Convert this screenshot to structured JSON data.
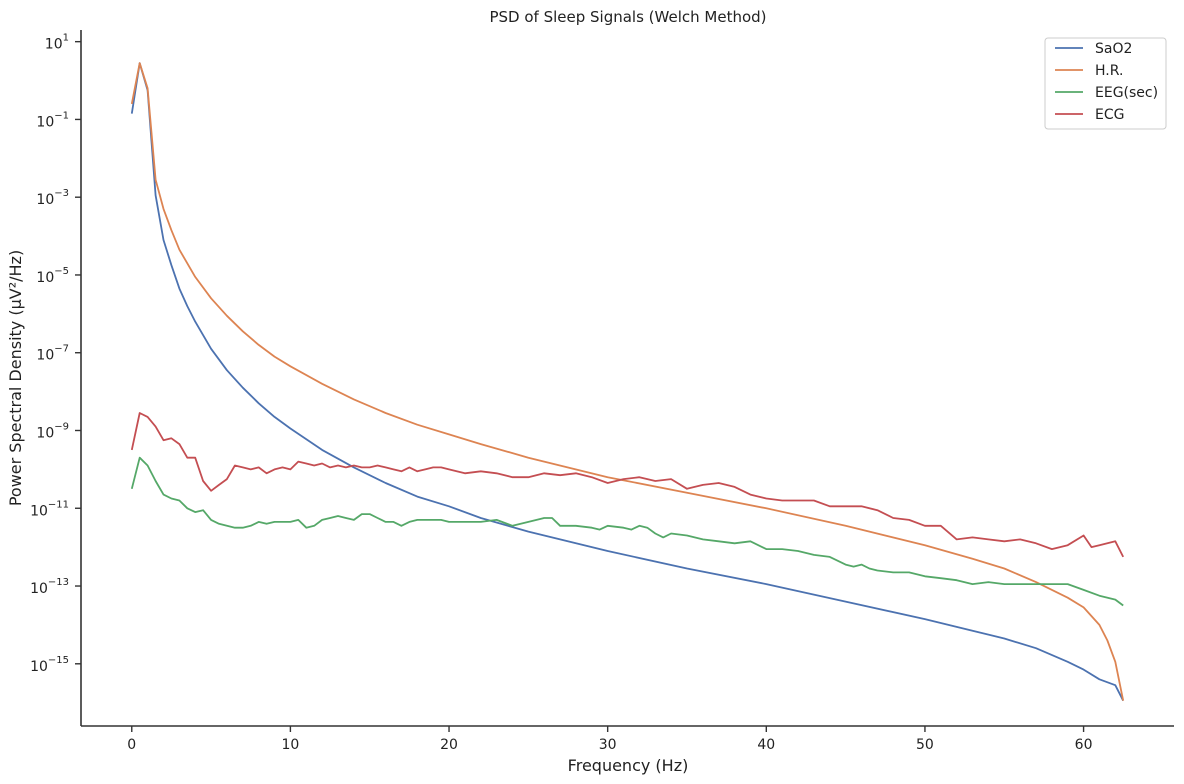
{
  "chart_data": {
    "type": "line",
    "title": "PSD of Sleep Signals (Welch Method)",
    "xlabel": "Frequency (Hz)",
    "ylabel": "Power Spectral Density (µV²/Hz)",
    "x_scale": "linear",
    "y_scale": "log",
    "xlim": [
      -3.2,
      65.7
    ],
    "ylim_log10": [
      -16.6,
      1.3
    ],
    "x_ticks": [
      0,
      10,
      20,
      30,
      40,
      50,
      60
    ],
    "x_tick_labels": [
      "0",
      "10",
      "20",
      "30",
      "40",
      "50",
      "60"
    ],
    "y_ticks_log10": [
      1,
      -1,
      -3,
      -5,
      -7,
      -9,
      -11,
      -13,
      -15
    ],
    "y_tick_labels": [
      {
        "base": "10",
        "exp": "1"
      },
      {
        "base": "10",
        "exp": "−1"
      },
      {
        "base": "10",
        "exp": "−3"
      },
      {
        "base": "10",
        "exp": "−5"
      },
      {
        "base": "10",
        "exp": "−7"
      },
      {
        "base": "10",
        "exp": "−9"
      },
      {
        "base": "10",
        "exp": "−11"
      },
      {
        "base": "10",
        "exp": "−13"
      },
      {
        "base": "10",
        "exp": "−15"
      }
    ],
    "grid": false,
    "legend_position": "top-right",
    "series": [
      {
        "name": "SaO2",
        "color": "#4c72b0",
        "points": [
          [
            0.0,
            -0.85
          ],
          [
            0.5,
            0.45
          ],
          [
            1.0,
            -0.25
          ],
          [
            1.5,
            -2.95
          ],
          [
            2.0,
            -4.1
          ],
          [
            2.5,
            -4.75
          ],
          [
            3.0,
            -5.35
          ],
          [
            3.5,
            -5.8
          ],
          [
            4.0,
            -6.2
          ],
          [
            5.0,
            -6.9
          ],
          [
            6.0,
            -7.45
          ],
          [
            7.0,
            -7.9
          ],
          [
            8.0,
            -8.3
          ],
          [
            9.0,
            -8.65
          ],
          [
            10.0,
            -8.95
          ],
          [
            12.0,
            -9.5
          ],
          [
            14.0,
            -9.95
          ],
          [
            16.0,
            -10.35
          ],
          [
            18.0,
            -10.7
          ],
          [
            20.0,
            -10.95
          ],
          [
            22.0,
            -11.25
          ],
          [
            25.0,
            -11.6
          ],
          [
            30.0,
            -12.1
          ],
          [
            35.0,
            -12.55
          ],
          [
            40.0,
            -12.95
          ],
          [
            45.0,
            -13.4
          ],
          [
            50.0,
            -13.85
          ],
          [
            53.0,
            -14.15
          ],
          [
            55.0,
            -14.35
          ],
          [
            57.0,
            -14.6
          ],
          [
            59.0,
            -14.95
          ],
          [
            60.0,
            -15.15
          ],
          [
            61.0,
            -15.4
          ],
          [
            62.0,
            -15.55
          ],
          [
            62.5,
            -15.95
          ]
        ]
      },
      {
        "name": "H.R.",
        "color": "#dd8452",
        "points": [
          [
            0.0,
            -0.6
          ],
          [
            0.5,
            0.45
          ],
          [
            1.0,
            -0.2
          ],
          [
            1.5,
            -2.55
          ],
          [
            2.0,
            -3.3
          ],
          [
            2.5,
            -3.85
          ],
          [
            3.0,
            -4.35
          ],
          [
            3.5,
            -4.7
          ],
          [
            4.0,
            -5.05
          ],
          [
            5.0,
            -5.6
          ],
          [
            6.0,
            -6.05
          ],
          [
            7.0,
            -6.45
          ],
          [
            8.0,
            -6.8
          ],
          [
            9.0,
            -7.1
          ],
          [
            10.0,
            -7.35
          ],
          [
            12.0,
            -7.8
          ],
          [
            14.0,
            -8.2
          ],
          [
            16.0,
            -8.55
          ],
          [
            18.0,
            -8.85
          ],
          [
            20.0,
            -9.1
          ],
          [
            22.0,
            -9.35
          ],
          [
            25.0,
            -9.7
          ],
          [
            30.0,
            -10.2
          ],
          [
            35.0,
            -10.6
          ],
          [
            40.0,
            -11.0
          ],
          [
            45.0,
            -11.45
          ],
          [
            50.0,
            -11.95
          ],
          [
            53.0,
            -12.3
          ],
          [
            55.0,
            -12.55
          ],
          [
            57.0,
            -12.9
          ],
          [
            59.0,
            -13.3
          ],
          [
            60.0,
            -13.55
          ],
          [
            61.0,
            -14.0
          ],
          [
            61.5,
            -14.4
          ],
          [
            62.0,
            -14.95
          ],
          [
            62.5,
            -15.95
          ]
        ]
      },
      {
        "name": "EEG(sec)",
        "color": "#55a868",
        "points": [
          [
            0.0,
            -10.5
          ],
          [
            0.5,
            -9.7
          ],
          [
            1.0,
            -9.9
          ],
          [
            1.5,
            -10.3
          ],
          [
            2.0,
            -10.65
          ],
          [
            2.5,
            -10.75
          ],
          [
            3.0,
            -10.8
          ],
          [
            3.5,
            -11.0
          ],
          [
            4.0,
            -11.1
          ],
          [
            4.5,
            -11.05
          ],
          [
            5.0,
            -11.3
          ],
          [
            5.5,
            -11.4
          ],
          [
            6.0,
            -11.45
          ],
          [
            6.5,
            -11.5
          ],
          [
            7.0,
            -11.5
          ],
          [
            7.5,
            -11.45
          ],
          [
            8.0,
            -11.35
          ],
          [
            8.5,
            -11.4
          ],
          [
            9.0,
            -11.35
          ],
          [
            9.5,
            -11.35
          ],
          [
            10.0,
            -11.35
          ],
          [
            10.5,
            -11.3
          ],
          [
            11.0,
            -11.5
          ],
          [
            11.5,
            -11.45
          ],
          [
            12.0,
            -11.3
          ],
          [
            12.5,
            -11.25
          ],
          [
            13.0,
            -11.2
          ],
          [
            13.5,
            -11.25
          ],
          [
            14.0,
            -11.3
          ],
          [
            14.5,
            -11.15
          ],
          [
            15.0,
            -11.15
          ],
          [
            15.5,
            -11.25
          ],
          [
            16.0,
            -11.35
          ],
          [
            16.5,
            -11.35
          ],
          [
            17.0,
            -11.45
          ],
          [
            17.5,
            -11.35
          ],
          [
            18.0,
            -11.3
          ],
          [
            18.5,
            -11.3
          ],
          [
            19.0,
            -11.3
          ],
          [
            19.5,
            -11.3
          ],
          [
            20.0,
            -11.35
          ],
          [
            20.5,
            -11.35
          ],
          [
            21.0,
            -11.35
          ],
          [
            22.0,
            -11.35
          ],
          [
            23.0,
            -11.3
          ],
          [
            24.0,
            -11.45
          ],
          [
            25.0,
            -11.35
          ],
          [
            26.0,
            -11.25
          ],
          [
            26.5,
            -11.25
          ],
          [
            27.0,
            -11.45
          ],
          [
            28.0,
            -11.45
          ],
          [
            29.0,
            -11.5
          ],
          [
            29.5,
            -11.55
          ],
          [
            30.0,
            -11.45
          ],
          [
            31.0,
            -11.5
          ],
          [
            31.5,
            -11.55
          ],
          [
            32.0,
            -11.45
          ],
          [
            32.5,
            -11.5
          ],
          [
            33.0,
            -11.65
          ],
          [
            33.5,
            -11.75
          ],
          [
            34.0,
            -11.65
          ],
          [
            35.0,
            -11.7
          ],
          [
            36.0,
            -11.8
          ],
          [
            37.0,
            -11.85
          ],
          [
            38.0,
            -11.9
          ],
          [
            39.0,
            -11.85
          ],
          [
            40.0,
            -12.05
          ],
          [
            41.0,
            -12.05
          ],
          [
            42.0,
            -12.1
          ],
          [
            43.0,
            -12.2
          ],
          [
            44.0,
            -12.25
          ],
          [
            45.0,
            -12.45
          ],
          [
            45.5,
            -12.5
          ],
          [
            46.0,
            -12.45
          ],
          [
            46.5,
            -12.55
          ],
          [
            47.0,
            -12.6
          ],
          [
            48.0,
            -12.65
          ],
          [
            49.0,
            -12.65
          ],
          [
            50.0,
            -12.75
          ],
          [
            51.0,
            -12.8
          ],
          [
            52.0,
            -12.85
          ],
          [
            53.0,
            -12.95
          ],
          [
            54.0,
            -12.9
          ],
          [
            55.0,
            -12.95
          ],
          [
            56.0,
            -12.95
          ],
          [
            57.0,
            -12.95
          ],
          [
            58.0,
            -12.95
          ],
          [
            59.0,
            -12.95
          ],
          [
            60.0,
            -13.1
          ],
          [
            61.0,
            -13.25
          ],
          [
            62.0,
            -13.35
          ],
          [
            62.5,
            -13.5
          ]
        ]
      },
      {
        "name": "ECG",
        "color": "#c44e52",
        "points": [
          [
            0.0,
            -9.5
          ],
          [
            0.5,
            -8.55
          ],
          [
            1.0,
            -8.65
          ],
          [
            1.5,
            -8.9
          ],
          [
            2.0,
            -9.25
          ],
          [
            2.5,
            -9.2
          ],
          [
            3.0,
            -9.35
          ],
          [
            3.5,
            -9.7
          ],
          [
            4.0,
            -9.7
          ],
          [
            4.5,
            -10.3
          ],
          [
            5.0,
            -10.55
          ],
          [
            5.5,
            -10.4
          ],
          [
            6.0,
            -10.25
          ],
          [
            6.5,
            -9.9
          ],
          [
            7.0,
            -9.95
          ],
          [
            7.5,
            -10.0
          ],
          [
            8.0,
            -9.95
          ],
          [
            8.5,
            -10.1
          ],
          [
            9.0,
            -10.0
          ],
          [
            9.5,
            -9.95
          ],
          [
            10.0,
            -10.0
          ],
          [
            10.5,
            -9.8
          ],
          [
            11.0,
            -9.85
          ],
          [
            11.5,
            -9.9
          ],
          [
            12.0,
            -9.85
          ],
          [
            12.5,
            -9.95
          ],
          [
            13.0,
            -9.9
          ],
          [
            13.5,
            -9.95
          ],
          [
            14.0,
            -9.9
          ],
          [
            14.5,
            -9.95
          ],
          [
            15.0,
            -9.95
          ],
          [
            15.5,
            -9.9
          ],
          [
            16.0,
            -9.95
          ],
          [
            16.5,
            -10.0
          ],
          [
            17.0,
            -10.05
          ],
          [
            17.5,
            -9.95
          ],
          [
            18.0,
            -10.05
          ],
          [
            18.5,
            -10.0
          ],
          [
            19.0,
            -9.95
          ],
          [
            19.5,
            -9.95
          ],
          [
            20.0,
            -10.0
          ],
          [
            21.0,
            -10.1
          ],
          [
            22.0,
            -10.05
          ],
          [
            23.0,
            -10.1
          ],
          [
            24.0,
            -10.2
          ],
          [
            25.0,
            -10.2
          ],
          [
            26.0,
            -10.1
          ],
          [
            27.0,
            -10.15
          ],
          [
            28.0,
            -10.1
          ],
          [
            29.0,
            -10.2
          ],
          [
            30.0,
            -10.35
          ],
          [
            31.0,
            -10.25
          ],
          [
            32.0,
            -10.2
          ],
          [
            33.0,
            -10.3
          ],
          [
            34.0,
            -10.25
          ],
          [
            35.0,
            -10.5
          ],
          [
            36.0,
            -10.4
          ],
          [
            37.0,
            -10.35
          ],
          [
            38.0,
            -10.45
          ],
          [
            39.0,
            -10.65
          ],
          [
            40.0,
            -10.75
          ],
          [
            41.0,
            -10.8
          ],
          [
            42.0,
            -10.8
          ],
          [
            43.0,
            -10.8
          ],
          [
            44.0,
            -10.95
          ],
          [
            45.0,
            -10.95
          ],
          [
            46.0,
            -10.95
          ],
          [
            47.0,
            -11.05
          ],
          [
            48.0,
            -11.25
          ],
          [
            49.0,
            -11.3
          ],
          [
            50.0,
            -11.45
          ],
          [
            51.0,
            -11.45
          ],
          [
            52.0,
            -11.8
          ],
          [
            53.0,
            -11.75
          ],
          [
            54.0,
            -11.8
          ],
          [
            55.0,
            -11.85
          ],
          [
            56.0,
            -11.8
          ],
          [
            57.0,
            -11.9
          ],
          [
            58.0,
            -12.05
          ],
          [
            59.0,
            -11.95
          ],
          [
            60.0,
            -11.7
          ],
          [
            60.5,
            -12.0
          ],
          [
            61.0,
            -11.95
          ],
          [
            62.0,
            -11.85
          ],
          [
            62.5,
            -12.25
          ]
        ]
      }
    ]
  }
}
